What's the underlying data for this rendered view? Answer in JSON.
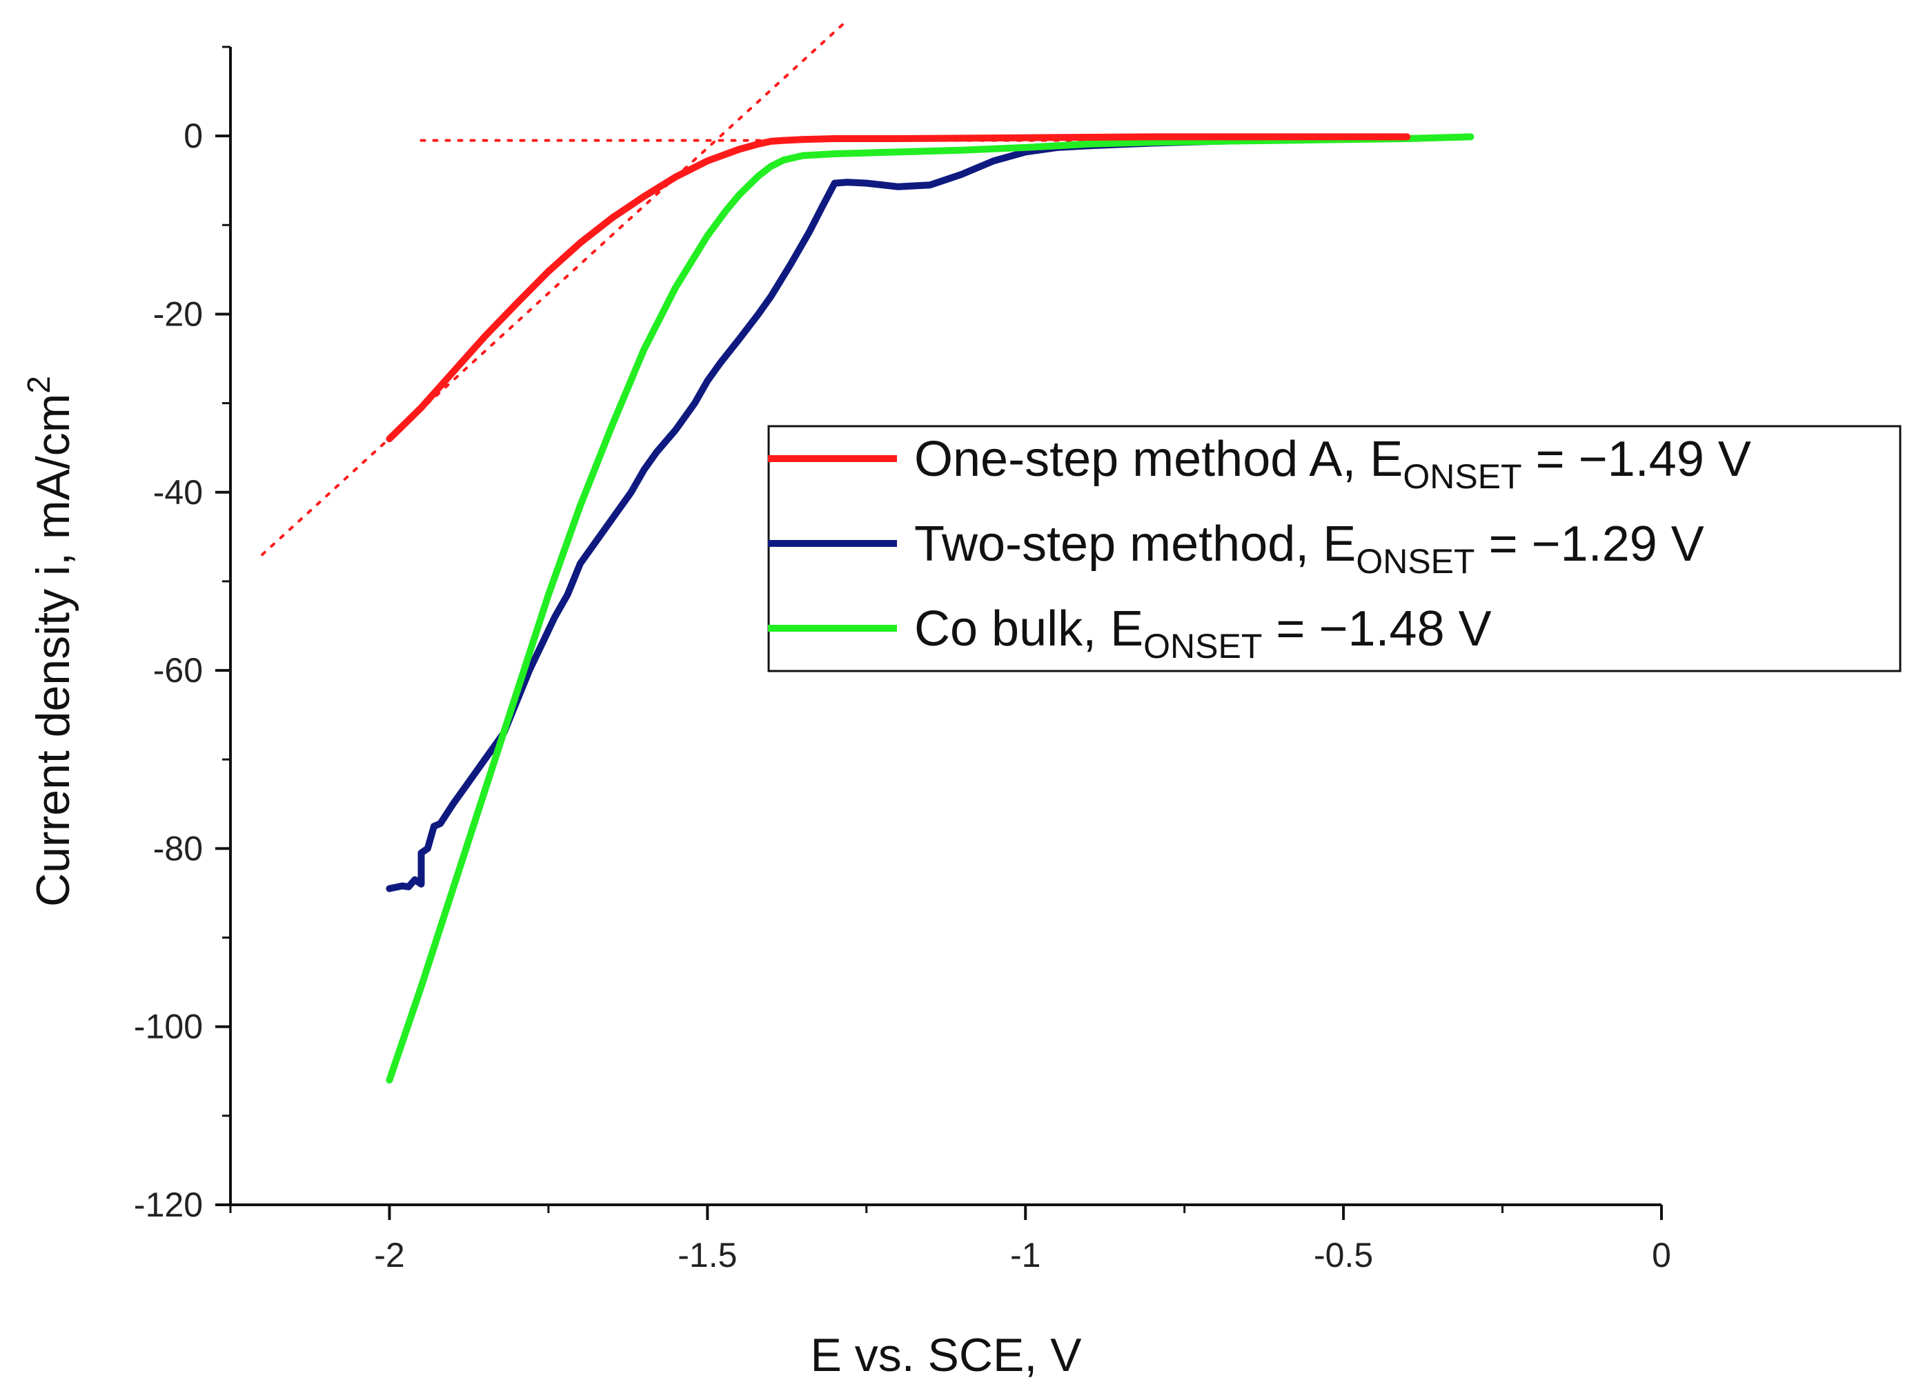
{
  "chart_data": {
    "type": "line",
    "title": "",
    "xlabel": "E vs. SCE, V",
    "ylabel_main": "Current density i, mA/cm",
    "ylabel_sup": "2",
    "xlim": [
      -2.25,
      0
    ],
    "ylim": [
      -120,
      10
    ],
    "xticks": [
      -2,
      -1.5,
      -1,
      -0.5,
      0
    ],
    "xtick_labels": [
      "-2",
      "-1.5",
      "-1",
      "-0.5",
      "0"
    ],
    "xminor": [
      -2.25,
      -1.75,
      -1.25,
      -0.75,
      -0.25
    ],
    "yticks": [
      -120,
      -100,
      -80,
      -60,
      -40,
      -20,
      0
    ],
    "ytick_labels": [
      "-120",
      "-100",
      "-80",
      "-60",
      "-40",
      "-20",
      "0"
    ],
    "yminor": [
      -110,
      -90,
      -70,
      -50,
      -30,
      -10,
      10
    ],
    "grid": false,
    "legend_placement": "center-right",
    "series": [
      {
        "name": "One-step method A",
        "legend": {
          "prefix": "One-step method A, E",
          "sub": "ONSET",
          "suffix": " = −1.49 V"
        },
        "color": "#ff1a1a",
        "x": [
          -2.0,
          -1.95,
          -1.9,
          -1.85,
          -1.8,
          -1.75,
          -1.7,
          -1.65,
          -1.6,
          -1.55,
          -1.5,
          -1.45,
          -1.42,
          -1.4,
          -1.38,
          -1.35,
          -1.3,
          -1.2,
          -1.0,
          -0.8,
          -0.6,
          -0.4
        ],
        "y": [
          -34,
          -30.5,
          -26.5,
          -22.5,
          -18.8,
          -15.2,
          -12,
          -9.2,
          -6.8,
          -4.6,
          -2.8,
          -1.5,
          -0.9,
          -0.6,
          -0.5,
          -0.4,
          -0.3,
          -0.3,
          -0.2,
          -0.1,
          -0.1,
          -0.1
        ]
      },
      {
        "name": "Two-step method",
        "legend": {
          "prefix": "Two-step method, E",
          "sub": "ONSET",
          "suffix": " = −1.29 V"
        },
        "color": "#0f1a80",
        "x": [
          -2.0,
          -1.98,
          -1.97,
          -1.96,
          -1.95,
          -1.95,
          -1.94,
          -1.93,
          -1.92,
          -1.9,
          -1.88,
          -1.85,
          -1.82,
          -1.8,
          -1.78,
          -1.76,
          -1.74,
          -1.72,
          -1.7,
          -1.68,
          -1.65,
          -1.62,
          -1.6,
          -1.58,
          -1.55,
          -1.52,
          -1.5,
          -1.48,
          -1.45,
          -1.42,
          -1.4,
          -1.37,
          -1.34,
          -1.32,
          -1.3,
          -1.28,
          -1.25,
          -1.2,
          -1.15,
          -1.1,
          -1.05,
          -1.0,
          -0.95,
          -0.9,
          -0.8,
          -0.7,
          -0.6,
          -0.5,
          -0.45
        ],
        "y": [
          -84.5,
          -84.2,
          -84.3,
          -83.5,
          -84,
          -80.5,
          -80,
          -77.5,
          -77.2,
          -75,
          -73,
          -70,
          -67,
          -63.5,
          -60,
          -57,
          -54,
          -51.5,
          -48,
          -46,
          -43,
          -40,
          -37.5,
          -35.5,
          -33,
          -30,
          -27.5,
          -25.5,
          -22.8,
          -20,
          -18,
          -14.5,
          -10.8,
          -8,
          -5.3,
          -5.2,
          -5.3,
          -5.7,
          -5.5,
          -4.3,
          -2.8,
          -1.8,
          -1.3,
          -1.1,
          -0.8,
          -0.6,
          -0.4,
          -0.2,
          -0.1
        ]
      },
      {
        "name": "Co bulk",
        "legend": {
          "prefix": "Co bulk, E",
          "sub": "ONSET",
          "suffix": " = −1.48 V"
        },
        "color": "#22ee22",
        "x": [
          -2.0,
          -1.95,
          -1.9,
          -1.85,
          -1.8,
          -1.75,
          -1.7,
          -1.65,
          -1.6,
          -1.55,
          -1.5,
          -1.47,
          -1.45,
          -1.42,
          -1.4,
          -1.38,
          -1.35,
          -1.3,
          -1.25,
          -1.2,
          -1.1,
          -1.0,
          -0.9,
          -0.8,
          -0.6,
          -0.4,
          -0.3
        ],
        "y": [
          -106,
          -95.5,
          -84.5,
          -73.5,
          -62.5,
          -51.5,
          -41.5,
          -32.5,
          -24,
          -17,
          -11.2,
          -8.3,
          -6.6,
          -4.5,
          -3.4,
          -2.7,
          -2.2,
          -2.0,
          -1.9,
          -1.8,
          -1.6,
          -1.3,
          -0.9,
          -0.7,
          -0.5,
          -0.3,
          -0.1
        ]
      }
    ],
    "guide_lines": [
      {
        "name": "baseline-fit",
        "color": "#ff1a1a",
        "x": [
          -1.95,
          -0.38
        ],
        "y": [
          -0.5,
          -0.5
        ]
      },
      {
        "name": "tafel-fit",
        "color": "#ff1a1a",
        "x": [
          -2.2,
          -1.28
        ],
        "y": [
          -47,
          13
        ]
      }
    ]
  }
}
